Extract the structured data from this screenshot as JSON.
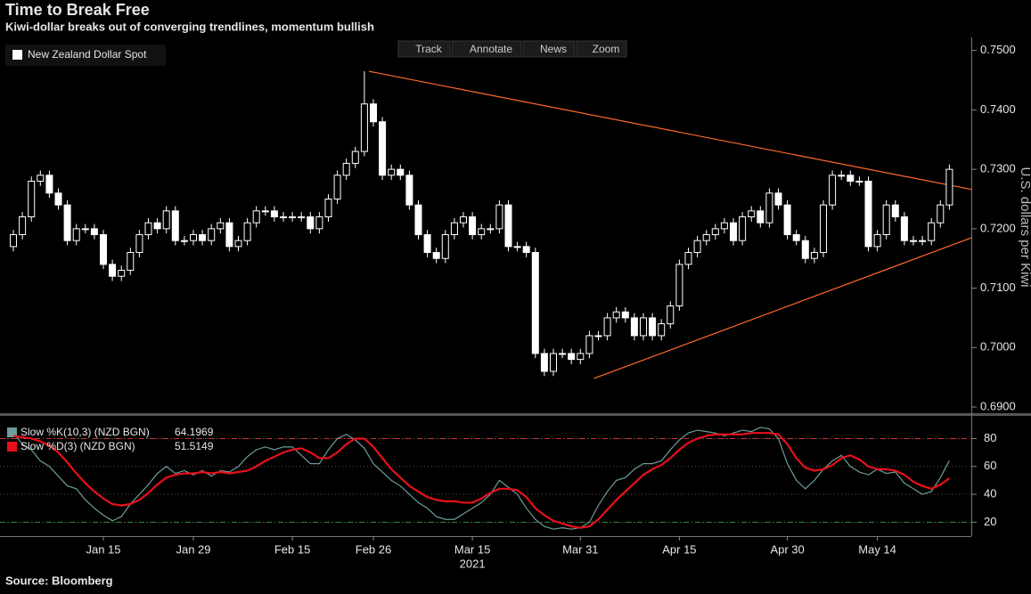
{
  "toolbar": [
    "Track",
    "Annotate",
    "News",
    "Zoom"
  ],
  "source": "Source: Bloomberg",
  "chart_data": [
    {
      "type": "candlestick",
      "title": "Time to Break Free",
      "subtitle": "Kiwi-dollar breaks out of converging trendlines, momentum bullish",
      "y_label": "U.S. dollars per Kiwi",
      "year_label": "2021",
      "legend": "top-left",
      "categories": [
        null,
        null,
        null,
        null,
        null,
        null,
        null,
        null,
        null,
        null,
        "Jan 15",
        null,
        null,
        null,
        null,
        null,
        null,
        null,
        null,
        null,
        "Jan 29",
        null,
        null,
        null,
        null,
        null,
        null,
        null,
        null,
        null,
        null,
        "Feb 15",
        null,
        null,
        null,
        null,
        null,
        null,
        null,
        null,
        "Feb 26",
        null,
        null,
        null,
        null,
        null,
        null,
        null,
        null,
        null,
        null,
        "Mar 15",
        null,
        null,
        null,
        null,
        null,
        null,
        null,
        null,
        null,
        null,
        null,
        "Mar 31",
        null,
        null,
        null,
        null,
        null,
        null,
        null,
        null,
        null,
        null,
        "Apr 15",
        null,
        null,
        null,
        null,
        null,
        null,
        null,
        null,
        null,
        null,
        null,
        "Apr 30",
        null,
        null,
        null,
        null,
        null,
        null,
        null,
        null,
        null,
        "May 14",
        null,
        null,
        null,
        null,
        null,
        null,
        null,
        null
      ],
      "series": [
        {
          "name": "New Zealand Dollar Spot",
          "color": "#ffffff",
          "open": [
            0.717,
            0.719,
            0.722,
            0.728,
            0.729,
            0.726,
            0.724,
            0.718,
            0.72,
            0.72,
            0.719,
            0.714,
            0.712,
            0.713,
            0.716,
            0.719,
            0.721,
            0.72,
            0.723,
            0.718,
            0.718,
            0.719,
            0.718,
            0.72,
            0.721,
            0.717,
            0.718,
            0.721,
            0.723,
            0.723,
            0.722,
            0.722,
            0.722,
            0.722,
            0.72,
            0.722,
            0.725,
            0.729,
            0.731,
            0.733,
            0.741,
            0.738,
            0.729,
            0.73,
            0.729,
            0.724,
            0.719,
            0.716,
            0.715,
            0.719,
            0.721,
            0.722,
            0.719,
            0.72,
            0.72,
            0.724,
            0.717,
            0.717,
            0.716,
            0.699,
            0.696,
            0.699,
            0.699,
            0.698,
            0.699,
            0.702,
            0.702,
            0.705,
            0.706,
            0.705,
            0.702,
            0.705,
            0.702,
            0.704,
            0.707,
            0.714,
            0.716,
            0.718,
            0.719,
            0.72,
            0.721,
            0.718,
            0.722,
            0.723,
            0.721,
            0.726,
            0.724,
            0.719,
            0.718,
            0.715,
            0.716,
            0.724,
            0.729,
            0.729,
            0.728,
            0.728,
            0.717,
            0.719,
            0.724,
            0.722,
            0.718,
            0.718,
            0.718,
            0.721,
            0.724
          ],
          "high": [
            0.7198,
            0.7228,
            0.7288,
            0.7298,
            0.7298,
            0.7268,
            0.7248,
            0.7208,
            0.7208,
            0.7208,
            0.7198,
            0.7148,
            0.7138,
            0.7168,
            0.7198,
            0.7218,
            0.7218,
            0.7238,
            0.7238,
            0.7188,
            0.7198,
            0.7198,
            0.7208,
            0.7218,
            0.7218,
            0.7188,
            0.7218,
            0.7238,
            0.7238,
            0.7238,
            0.7228,
            0.7228,
            0.7228,
            0.7228,
            0.7228,
            0.7258,
            0.7298,
            0.7318,
            0.7338,
            0.7465,
            0.7418,
            0.7388,
            0.7308,
            0.7308,
            0.7298,
            0.7248,
            0.7198,
            0.7168,
            0.7198,
            0.7218,
            0.7228,
            0.7228,
            0.7208,
            0.7208,
            0.7248,
            0.7248,
            0.7178,
            0.7178,
            0.7168,
            0.6998,
            0.6998,
            0.6998,
            0.6998,
            0.6998,
            0.7028,
            0.7028,
            0.7058,
            0.7068,
            0.7068,
            0.7058,
            0.7058,
            0.7058,
            0.7048,
            0.7078,
            0.7148,
            0.7168,
            0.7188,
            0.7198,
            0.7208,
            0.7218,
            0.7218,
            0.7228,
            0.7238,
            0.7238,
            0.7268,
            0.7268,
            0.7248,
            0.7198,
            0.7188,
            0.7168,
            0.7248,
            0.7298,
            0.7298,
            0.7298,
            0.7288,
            0.7288,
            0.7198,
            0.7248,
            0.7248,
            0.7228,
            0.7188,
            0.7188,
            0.7218,
            0.7248,
            0.7308
          ],
          "low": [
            0.7162,
            0.7182,
            0.7212,
            0.7272,
            0.7252,
            0.7232,
            0.7172,
            0.7172,
            0.7192,
            0.7182,
            0.7132,
            0.7112,
            0.7112,
            0.7122,
            0.7152,
            0.7182,
            0.7192,
            0.7192,
            0.7172,
            0.7172,
            0.7172,
            0.7172,
            0.7172,
            0.7192,
            0.7162,
            0.7162,
            0.7172,
            0.7202,
            0.7222,
            0.7212,
            0.7212,
            0.7212,
            0.7212,
            0.7192,
            0.7192,
            0.7212,
            0.7242,
            0.7282,
            0.7302,
            0.7322,
            0.7372,
            0.7282,
            0.7282,
            0.7282,
            0.7232,
            0.7182,
            0.7152,
            0.7142,
            0.7142,
            0.7182,
            0.7202,
            0.7182,
            0.7182,
            0.7192,
            0.7192,
            0.7162,
            0.7162,
            0.7152,
            0.6982,
            0.6952,
            0.6952,
            0.6982,
            0.6972,
            0.6972,
            0.6982,
            0.7012,
            0.7012,
            0.7042,
            0.7042,
            0.7012,
            0.7012,
            0.7012,
            0.7012,
            0.7032,
            0.7062,
            0.7132,
            0.7152,
            0.7172,
            0.7182,
            0.7192,
            0.7172,
            0.7172,
            0.7212,
            0.7202,
            0.7202,
            0.7232,
            0.7182,
            0.7172,
            0.7142,
            0.7142,
            0.7152,
            0.7232,
            0.7282,
            0.7272,
            0.7272,
            0.7162,
            0.7162,
            0.7182,
            0.7212,
            0.7172,
            0.7172,
            0.7172,
            0.7172,
            0.7202,
            0.7232
          ],
          "close": [
            0.719,
            0.722,
            0.728,
            0.729,
            0.726,
            0.724,
            0.718,
            0.72,
            0.72,
            0.719,
            0.714,
            0.712,
            0.713,
            0.716,
            0.719,
            0.721,
            0.72,
            0.723,
            0.718,
            0.718,
            0.719,
            0.718,
            0.72,
            0.721,
            0.717,
            0.718,
            0.721,
            0.723,
            0.723,
            0.722,
            0.722,
            0.722,
            0.722,
            0.72,
            0.722,
            0.725,
            0.729,
            0.731,
            0.733,
            0.741,
            0.738,
            0.729,
            0.73,
            0.729,
            0.724,
            0.719,
            0.716,
            0.715,
            0.719,
            0.721,
            0.722,
            0.719,
            0.72,
            0.72,
            0.724,
            0.717,
            0.717,
            0.716,
            0.699,
            0.696,
            0.699,
            0.699,
            0.698,
            0.699,
            0.702,
            0.702,
            0.705,
            0.706,
            0.705,
            0.702,
            0.705,
            0.702,
            0.704,
            0.707,
            0.714,
            0.716,
            0.718,
            0.719,
            0.72,
            0.721,
            0.718,
            0.722,
            0.723,
            0.721,
            0.726,
            0.724,
            0.719,
            0.718,
            0.715,
            0.716,
            0.724,
            0.729,
            0.729,
            0.728,
            0.728,
            0.717,
            0.719,
            0.724,
            0.722,
            0.718,
            0.718,
            0.718,
            0.721,
            0.724,
            0.73
          ]
        }
      ],
      "trendlines": {
        "color": "#ff6a2a",
        "lines": [
          {
            "x": [
              39.5,
              106.5
            ],
            "y": [
              0.7465,
              0.7266
            ]
          },
          {
            "x": [
              64.5,
              106.5
            ],
            "y": [
              0.6948,
              0.7185
            ]
          }
        ]
      },
      "ylim": [
        0.6891,
        0.7522
      ],
      "yticks": [
        {
          "value": 0.69,
          "label": "0.6900"
        },
        {
          "value": 0.7,
          "label": "0.7000"
        },
        {
          "value": 0.71,
          "label": "0.7100"
        },
        {
          "value": 0.72,
          "label": "0.7200"
        },
        {
          "value": 0.73,
          "label": "0.7300"
        },
        {
          "value": 0.74,
          "label": "0.7400"
        },
        {
          "value": 0.75,
          "label": "0.7500"
        }
      ]
    },
    {
      "type": "line",
      "series": [
        {
          "name": "Slow %K(10,3) (NZD BGN)",
          "color": "#6e9c9c",
          "values": [
            84,
            76,
            72,
            64,
            60,
            53,
            46,
            44,
            36,
            30,
            25,
            21,
            24,
            33,
            40,
            47,
            55,
            60,
            55,
            57,
            54,
            57,
            53,
            57,
            56,
            60,
            67,
            72,
            74,
            72,
            74,
            74,
            68,
            62,
            62,
            72,
            80,
            83,
            79,
            73,
            62,
            56,
            50,
            46,
            40,
            34,
            30,
            24,
            22,
            22,
            26,
            30,
            34,
            40,
            50,
            45,
            40,
            30,
            22,
            17,
            15,
            16,
            15,
            16,
            20,
            32,
            42,
            50,
            52,
            58,
            62,
            62,
            64,
            72,
            79,
            84,
            86,
            85,
            84,
            82,
            84,
            86,
            85,
            88,
            87,
            80,
            62,
            50,
            44,
            50,
            58,
            64,
            68,
            60,
            56,
            54,
            58,
            55,
            56,
            48,
            44,
            40,
            42,
            52,
            64.1969
          ]
        },
        {
          "name": "Slow %D(3) (NZD BGN)",
          "color": "#e8101a",
          "values": [
            82,
            81,
            80,
            78,
            75,
            70,
            63,
            55,
            48,
            42,
            37,
            33,
            32,
            33,
            36,
            41,
            47,
            52,
            54,
            55,
            55,
            56,
            55,
            56,
            55,
            56,
            57,
            60,
            64,
            67,
            70,
            72,
            73,
            70,
            66,
            66,
            70,
            76,
            80,
            80,
            74,
            66,
            58,
            52,
            46,
            42,
            38,
            36,
            35,
            35,
            34,
            34,
            37,
            41,
            44,
            44,
            43,
            38,
            30,
            25,
            21,
            19,
            17,
            16,
            17,
            22,
            29,
            36,
            42,
            48,
            54,
            58,
            61,
            66,
            72,
            77,
            80,
            82,
            83,
            83,
            83,
            83,
            84,
            84,
            84,
            83,
            76,
            66,
            59,
            57,
            58,
            61,
            66,
            68,
            65,
            60,
            58,
            58,
            57,
            54,
            49,
            46,
            44,
            47,
            51.5149
          ]
        }
      ],
      "reference_lines": [
        {
          "value": 80,
          "color": "#d0303a"
        },
        {
          "value": 20,
          "color": "#2e8a3a"
        }
      ],
      "ylim": [
        10,
        95
      ],
      "yticks": [
        20,
        40,
        60,
        80
      ]
    }
  ]
}
